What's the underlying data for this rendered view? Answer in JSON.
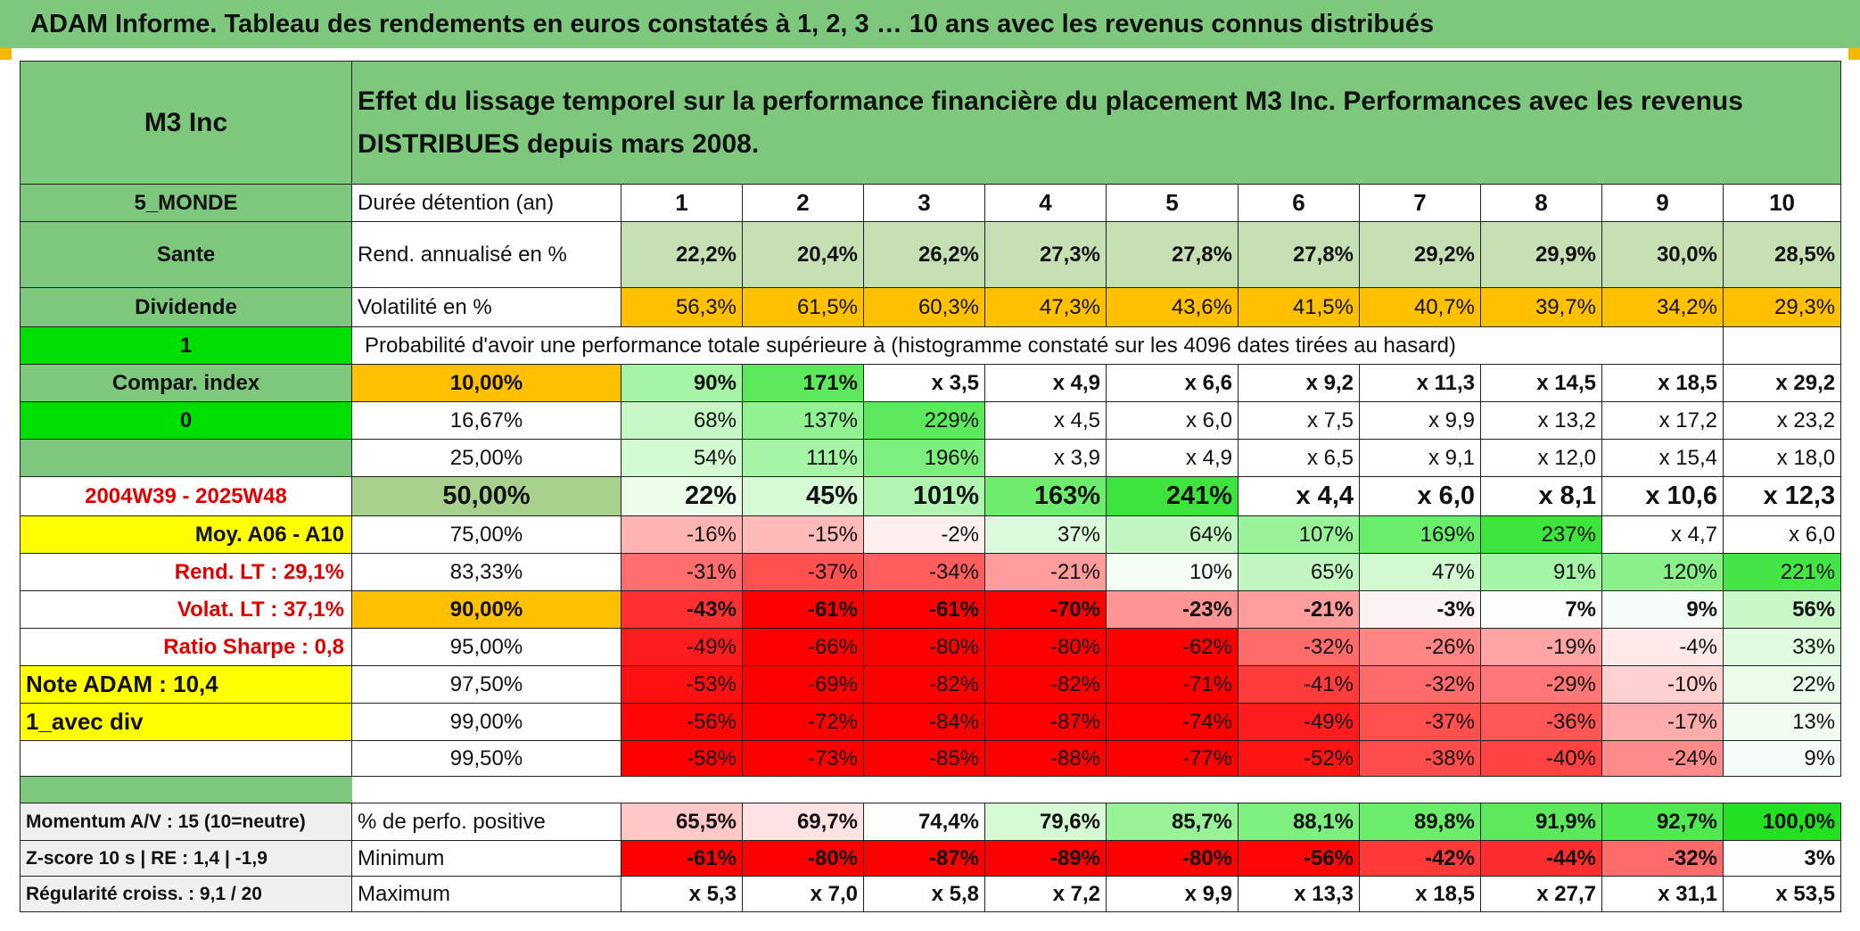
{
  "title": "ADAM Informe. Tableau des rendements en euros constatés à 1, 2, 3 … 10 ans avec les revenus connus distribués",
  "colors": {
    "header_green": "#7ec87e",
    "bright_green": "#00e000",
    "yellow": "#ffff00",
    "orange": "#ffc000",
    "red_text": "#e00000",
    "light_gray_label": "#f0f0f0"
  },
  "header": {
    "fund": "M3 Inc",
    "description": "Effet du lissage temporel sur la performance financière du placement M3 Inc. Performances avec les revenus DISTRIBUES depuis mars 2008."
  },
  "side_labels": [
    {
      "text": "5_MONDE",
      "bg": "#7ec87e"
    },
    {
      "text": "Sante",
      "bg": "#7ec87e"
    },
    {
      "text": "Dividende",
      "bg": "#7ec87e"
    },
    {
      "text": "1",
      "bg": "#00e000"
    },
    {
      "text": "Compar. index",
      "bg": "#7ec87e"
    },
    {
      "text": "0",
      "bg": "#00e000"
    },
    {
      "text": "",
      "bg": "#7ec87e"
    },
    {
      "text": "2004W39 - 2025W48",
      "bg": "#ffffff"
    },
    {
      "text": "Moy. A06 - A10",
      "bg": "#ffff00"
    },
    {
      "text": "Rend. LT :    29,1%",
      "bg": "#ffffff"
    },
    {
      "text": "Volat. LT :    37,1%",
      "bg": "#ffffff"
    },
    {
      "text": "Ratio Sharpe :    0,8",
      "bg": "#ffffff"
    },
    {
      "text": "Note ADAM : 10,4",
      "bg": "#ffff00"
    },
    {
      "text": "1_avec div",
      "bg": "#ffff00"
    },
    {
      "text": "",
      "bg": "#ffffff"
    }
  ],
  "years": {
    "label": "Durée détention (an)",
    "values": [
      "1",
      "2",
      "3",
      "4",
      "5",
      "6",
      "7",
      "8",
      "9",
      "10"
    ]
  },
  "rendement": {
    "label": "Rend. annualisé en %",
    "values": [
      "22,2%",
      "20,4%",
      "26,2%",
      "27,3%",
      "27,8%",
      "27,8%",
      "29,2%",
      "29,9%",
      "30,0%",
      "28,5%"
    ]
  },
  "volatilite": {
    "label": "Volatilité en %",
    "values": [
      "56,3%",
      "61,5%",
      "60,3%",
      "47,3%",
      "43,6%",
      "41,5%",
      "40,7%",
      "39,7%",
      "34,2%",
      "29,3%"
    ]
  },
  "probability_note": "Probabilité d'avoir une performance totale supérieure à (histogramme constaté sur les 4096 dates tirées au hasard)",
  "prob_rows": [
    {
      "p": "10,00%",
      "pbg": "#ffc000",
      "bold": true,
      "big": false,
      "v": [
        "90%",
        "171%",
        "x 3,5",
        "x 4,9",
        "x 6,6",
        "x 9,2",
        "x 11,3",
        "x 14,5",
        "x 18,5",
        "x 29,2"
      ],
      "bg": [
        "#a6f5a6",
        "#5cea5c",
        "#fff",
        "#fff",
        "#fff",
        "#fff",
        "#fff",
        "#fff",
        "#fff",
        "#fff"
      ]
    },
    {
      "p": "16,67%",
      "pbg": "#ffffff",
      "bold": false,
      "big": false,
      "v": [
        "68%",
        "137%",
        "229%",
        "x 4,5",
        "x 6,0",
        "x 7,5",
        "x 9,9",
        "x 13,2",
        "x 17,2",
        "x 23,2"
      ],
      "bg": [
        "#c6f8c6",
        "#90f290",
        "#5cea5c",
        "#fff",
        "#fff",
        "#fff",
        "#fff",
        "#fff",
        "#fff",
        "#fff"
      ]
    },
    {
      "p": "25,00%",
      "pbg": "#ffffff",
      "bold": false,
      "big": false,
      "v": [
        "54%",
        "111%",
        "196%",
        "x 3,9",
        "x 4,9",
        "x 6,5",
        "x 9,1",
        "x 12,0",
        "x 15,4",
        "x 18,0"
      ],
      "bg": [
        "#d4fad4",
        "#a6f5a6",
        "#7cef7c",
        "#fff",
        "#fff",
        "#fff",
        "#fff",
        "#fff",
        "#fff",
        "#fff"
      ]
    },
    {
      "p": "50,00%",
      "pbg": "#a9d18e",
      "bold": true,
      "big": true,
      "v": [
        "22%",
        "45%",
        "101%",
        "163%",
        "241%",
        "x 4,4",
        "x 6,0",
        "x 8,1",
        "x 10,6",
        "x 12,3"
      ],
      "bg": [
        "#ecfdec",
        "#d6fad6",
        "#b0f6b0",
        "#6eed6e",
        "#3de43d",
        "#fff",
        "#fff",
        "#fff",
        "#fff",
        "#fff"
      ]
    },
    {
      "p": "75,00%",
      "pbg": "#ffffff",
      "bold": false,
      "big": false,
      "v": [
        "-16%",
        "-15%",
        "-2%",
        "37%",
        "64%",
        "107%",
        "169%",
        "237%",
        "x 4,7",
        "x 6,0"
      ],
      "bg": [
        "#ffb4b4",
        "#ffbaba",
        "#fff0f0",
        "#dcfadc",
        "#c2f7c2",
        "#98f398",
        "#6aed6a",
        "#3de43d",
        "#fff",
        "#fff"
      ]
    },
    {
      "p": "83,33%",
      "pbg": "#ffffff",
      "bold": false,
      "big": false,
      "v": [
        "-31%",
        "-37%",
        "-34%",
        "-21%",
        "10%",
        "65%",
        "47%",
        "91%",
        "120%",
        "221%"
      ],
      "bg": [
        "#ff6e6e",
        "#ff5050",
        "#ff5e5e",
        "#ff9c9c",
        "#f4fef4",
        "#c2f7c2",
        "#d2f9d2",
        "#a6f5a6",
        "#8af08a",
        "#44e544"
      ]
    },
    {
      "p": "90,00%",
      "pbg": "#ffc000",
      "bold": true,
      "big": false,
      "v": [
        "-43%",
        "-61%",
        "-61%",
        "-70%",
        "-23%",
        "-21%",
        "-3%",
        "7%",
        "9%",
        "56%"
      ],
      "bg": [
        "#ff3030",
        "#ff0000",
        "#ff0000",
        "#ff0000",
        "#ff9494",
        "#ff9c9c",
        "#fff4f4",
        "#fbfefb",
        "#f6fdf6",
        "#c8f8c8"
      ]
    },
    {
      "p": "95,00%",
      "pbg": "#ffffff",
      "bold": false,
      "big": false,
      "v": [
        "-49%",
        "-66%",
        "-80%",
        "-80%",
        "-62%",
        "-32%",
        "-26%",
        "-19%",
        "-4%",
        "33%"
      ],
      "bg": [
        "#ff1c1c",
        "#ff0000",
        "#ff0000",
        "#ff0000",
        "#ff0000",
        "#ff6a6a",
        "#ff8484",
        "#ffa4a4",
        "#ffeaea",
        "#e0fbe0"
      ]
    },
    {
      "p": "97,50%",
      "pbg": "#ffffff",
      "bold": false,
      "big": false,
      "v": [
        "-53%",
        "-69%",
        "-82%",
        "-82%",
        "-71%",
        "-41%",
        "-32%",
        "-29%",
        "-10%",
        "22%"
      ],
      "bg": [
        "#ff1010",
        "#ff0000",
        "#ff0000",
        "#ff0000",
        "#ff0000",
        "#ff3c3c",
        "#ff6a6a",
        "#ff7676",
        "#ffd0d0",
        "#eafcea"
      ]
    },
    {
      "p": "99,00%",
      "pbg": "#ffffff",
      "bold": false,
      "big": false,
      "v": [
        "-56%",
        "-72%",
        "-84%",
        "-87%",
        "-74%",
        "-49%",
        "-37%",
        "-36%",
        "-17%",
        "13%"
      ],
      "bg": [
        "#ff0606",
        "#ff0000",
        "#ff0000",
        "#ff0000",
        "#ff0000",
        "#ff1c1c",
        "#ff5050",
        "#ff5656",
        "#ffacac",
        "#f2fdf2"
      ]
    },
    {
      "p": "99,50%",
      "pbg": "#ffffff",
      "bold": false,
      "big": false,
      "v": [
        "-58%",
        "-73%",
        "-85%",
        "-88%",
        "-77%",
        "-52%",
        "-38%",
        "-40%",
        "-24%",
        "9%"
      ],
      "bg": [
        "#ff0000",
        "#ff0000",
        "#ff0000",
        "#ff0000",
        "#ff0000",
        "#ff1414",
        "#ff4c4c",
        "#ff4242",
        "#ff8c8c",
        "#f6fdf6"
      ]
    }
  ],
  "footer_rows": [
    {
      "side": "Momentum A/V : 15 (10=neutre)",
      "label": "% de perfo. positive",
      "v": [
        "65,5%",
        "69,7%",
        "74,4%",
        "79,6%",
        "85,7%",
        "88,1%",
        "89,8%",
        "91,9%",
        "92,7%",
        "100,0%"
      ],
      "bg": [
        "#ffc8c8",
        "#ffe2e2",
        "#fbfefb",
        "#d6fad6",
        "#98f398",
        "#7cef7c",
        "#6aed6a",
        "#5cea5c",
        "#50e850",
        "#22e022"
      ]
    },
    {
      "side": "Z-score 10 s | RE : 1,4 | -1,9",
      "label": "Minimum",
      "v": [
        "-61%",
        "-80%",
        "-87%",
        "-89%",
        "-80%",
        "-56%",
        "-42%",
        "-44%",
        "-32%",
        "3%"
      ],
      "bg": [
        "#ff0000",
        "#ff0000",
        "#ff0000",
        "#ff0000",
        "#ff0000",
        "#ff0606",
        "#ff3838",
        "#ff2e2e",
        "#ff6a6a",
        "#fdfffd"
      ]
    },
    {
      "side": "Régularité croiss. : 9,1 / 20",
      "label": "Maximum",
      "v": [
        "x 5,3",
        "x 7,0",
        "x 5,8",
        "x 7,2",
        "x 9,9",
        "x 13,3",
        "x 18,5",
        "x 27,7",
        "x 31,1",
        "x 53,5"
      ],
      "bg": [
        "#fff",
        "#fff",
        "#fff",
        "#fff",
        "#fff",
        "#fff",
        "#fff",
        "#fff",
        "#fff",
        "#fff"
      ]
    }
  ]
}
